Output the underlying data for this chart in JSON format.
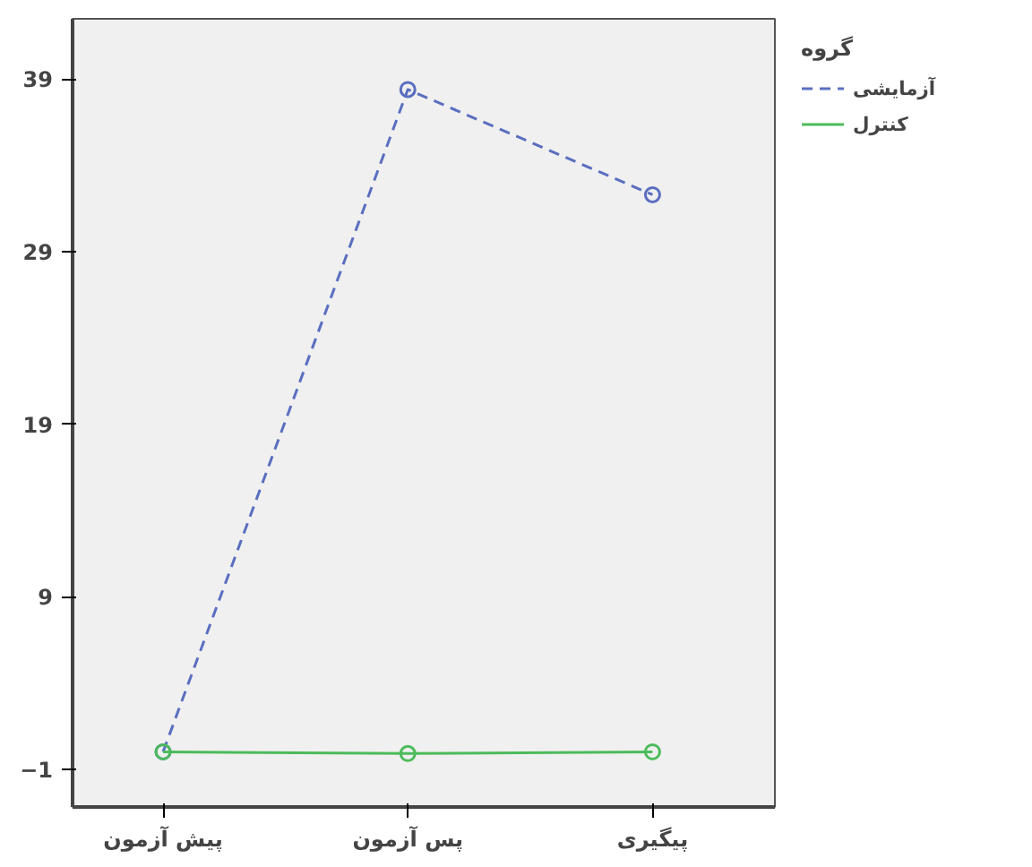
{
  "chart_data": {
    "type": "line",
    "categories": [
      "پیش آزمون",
      "پس آزمون",
      "پیگیری"
    ],
    "series": [
      {
        "name": "آزمایشی",
        "color": "#5a6ec0",
        "values": [
          0.0,
          38.4,
          32.3
        ],
        "line_style": "dashed"
      },
      {
        "name": "کنترل",
        "color": "#4cbb5a",
        "values": [
          0.0,
          -0.1,
          0.0
        ],
        "line_style": "solid"
      }
    ],
    "legend_title": "گروه",
    "legend": "right",
    "marker": "circle",
    "grid": false,
    "ylim": [
      -3.2,
      42.5
    ],
    "yticks": [
      -1,
      9,
      19,
      29,
      39
    ]
  }
}
